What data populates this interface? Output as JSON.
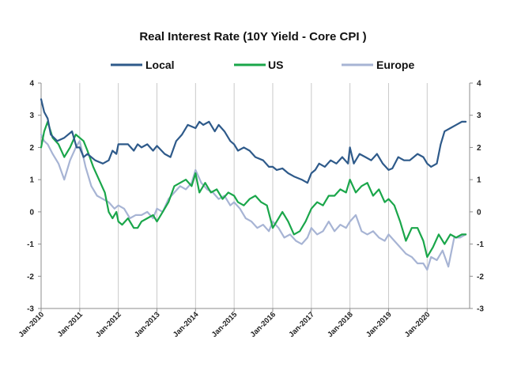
{
  "chart_data": {
    "type": "line",
    "title": "Real Interest Rate (10Y Yield - Core CPI )",
    "xlabel": "",
    "ylabel": "",
    "ylim": [
      -3,
      4
    ],
    "yticks": [
      -3,
      -2,
      -1,
      0,
      1,
      2,
      3,
      4
    ],
    "xlim": [
      2010.0,
      2021.1
    ],
    "x_tick_labels": [
      "Jan-2010",
      "Jan-2011",
      "Jan-2012",
      "Jan-2013",
      "Jan-2014",
      "Jan-2015",
      "Jan-2016",
      "Jan-2017",
      "Jan-2018",
      "Jan-2019",
      "Jan-2020"
    ],
    "x_tick_values": [
      2010,
      2011,
      2012,
      2013,
      2014,
      2015,
      2016,
      2017,
      2018,
      2019,
      2020
    ],
    "grid": {
      "vertical": true,
      "horizontal": false
    },
    "legend_position": "top",
    "series": [
      {
        "name": "Local",
        "color": "#2e5a8a",
        "x": [
          2010.0,
          2010.08,
          2010.17,
          2010.25,
          2010.42,
          2010.6,
          2010.8,
          2010.92,
          2011.0,
          2011.1,
          2011.2,
          2011.4,
          2011.6,
          2011.75,
          2011.85,
          2011.95,
          2012.0,
          2012.1,
          2012.25,
          2012.4,
          2012.5,
          2012.6,
          2012.75,
          2012.9,
          2013.0,
          2013.2,
          2013.35,
          2013.5,
          2013.65,
          2013.8,
          2014.0,
          2014.1,
          2014.2,
          2014.35,
          2014.5,
          2014.6,
          2014.75,
          2014.9,
          2015.0,
          2015.1,
          2015.25,
          2015.4,
          2015.55,
          2015.75,
          2015.9,
          2016.0,
          2016.1,
          2016.25,
          2016.4,
          2016.55,
          2016.75,
          2016.9,
          2017.0,
          2017.1,
          2017.2,
          2017.35,
          2017.5,
          2017.65,
          2017.8,
          2017.95,
          2018.0,
          2018.1,
          2018.25,
          2018.4,
          2018.55,
          2018.7,
          2018.85,
          2019.0,
          2019.1,
          2019.25,
          2019.4,
          2019.55,
          2019.75,
          2019.9,
          2020.0,
          2020.1,
          2020.25,
          2020.35,
          2020.45,
          2020.6,
          2020.75,
          2020.9,
          2021.0
        ],
        "values": [
          3.5,
          3.1,
          2.9,
          2.4,
          2.2,
          2.3,
          2.5,
          2.0,
          2.0,
          1.7,
          1.8,
          1.6,
          1.5,
          1.6,
          1.9,
          1.8,
          2.1,
          2.1,
          2.1,
          1.9,
          2.1,
          2.0,
          2.1,
          1.9,
          2.05,
          1.8,
          1.7,
          2.2,
          2.4,
          2.7,
          2.6,
          2.8,
          2.7,
          2.8,
          2.5,
          2.7,
          2.5,
          2.2,
          2.1,
          1.9,
          2.0,
          1.9,
          1.7,
          1.6,
          1.4,
          1.4,
          1.3,
          1.35,
          1.2,
          1.1,
          1.0,
          0.9,
          1.2,
          1.3,
          1.5,
          1.4,
          1.6,
          1.5,
          1.7,
          1.5,
          2.0,
          1.5,
          1.8,
          1.7,
          1.6,
          1.8,
          1.5,
          1.3,
          1.35,
          1.7,
          1.6,
          1.6,
          1.8,
          1.7,
          1.5,
          1.4,
          1.5,
          2.1,
          2.5,
          2.6,
          2.7,
          2.8,
          2.8
        ]
      },
      {
        "name": "US",
        "color": "#1aa64a",
        "x": [
          2010.0,
          2010.08,
          2010.17,
          2010.3,
          2010.45,
          2010.6,
          2010.75,
          2010.9,
          2011.0,
          2011.1,
          2011.2,
          2011.35,
          2011.5,
          2011.65,
          2011.75,
          2011.85,
          2011.95,
          2012.0,
          2012.1,
          2012.25,
          2012.4,
          2012.5,
          2012.6,
          2012.75,
          2012.9,
          2013.0,
          2013.15,
          2013.3,
          2013.45,
          2013.6,
          2013.75,
          2013.9,
          2014.0,
          2014.1,
          2014.25,
          2014.4,
          2014.55,
          2014.7,
          2014.85,
          2015.0,
          2015.1,
          2015.25,
          2015.4,
          2015.55,
          2015.7,
          2015.85,
          2016.0,
          2016.1,
          2016.25,
          2016.4,
          2016.55,
          2016.7,
          2016.85,
          2017.0,
          2017.15,
          2017.3,
          2017.45,
          2017.6,
          2017.75,
          2017.9,
          2018.0,
          2018.15,
          2018.3,
          2018.45,
          2018.6,
          2018.75,
          2018.9,
          2019.0,
          2019.15,
          2019.3,
          2019.45,
          2019.6,
          2019.75,
          2019.9,
          2020.0,
          2020.15,
          2020.3,
          2020.45,
          2020.6,
          2020.75,
          2020.9,
          2021.0
        ],
        "values": [
          2.0,
          2.5,
          2.8,
          2.3,
          2.1,
          1.7,
          2.0,
          2.4,
          2.3,
          2.2,
          1.9,
          1.4,
          1.0,
          0.6,
          0.0,
          -0.2,
          0.0,
          -0.3,
          -0.4,
          -0.2,
          -0.5,
          -0.5,
          -0.3,
          -0.2,
          -0.1,
          -0.3,
          0.0,
          0.3,
          0.8,
          0.9,
          1.0,
          0.8,
          1.2,
          0.6,
          0.9,
          0.6,
          0.7,
          0.4,
          0.6,
          0.5,
          0.3,
          0.2,
          0.4,
          0.5,
          0.3,
          0.2,
          -0.5,
          -0.3,
          0.0,
          -0.3,
          -0.7,
          -0.6,
          -0.3,
          0.1,
          0.3,
          0.2,
          0.5,
          0.5,
          0.7,
          0.6,
          1.0,
          0.6,
          0.8,
          0.9,
          0.5,
          0.7,
          0.3,
          0.4,
          0.2,
          -0.3,
          -0.9,
          -0.5,
          -0.5,
          -0.9,
          -1.4,
          -1.1,
          -0.7,
          -1.0,
          -0.7,
          -0.8,
          -0.7,
          -0.7
        ]
      },
      {
        "name": "Europe",
        "color": "#a7b4d4",
        "x": [
          2010.0,
          2010.08,
          2010.17,
          2010.3,
          2010.45,
          2010.6,
          2010.75,
          2010.9,
          2011.0,
          2011.15,
          2011.3,
          2011.45,
          2011.6,
          2011.75,
          2011.9,
          2012.0,
          2012.15,
          2012.3,
          2012.45,
          2012.6,
          2012.75,
          2012.9,
          2013.0,
          2013.15,
          2013.3,
          2013.45,
          2013.6,
          2013.75,
          2013.9,
          2014.0,
          2014.15,
          2014.3,
          2014.45,
          2014.6,
          2014.75,
          2014.9,
          2015.0,
          2015.15,
          2015.3,
          2015.45,
          2015.6,
          2015.75,
          2015.9,
          2016.0,
          2016.15,
          2016.3,
          2016.45,
          2016.6,
          2016.75,
          2016.9,
          2017.0,
          2017.15,
          2017.3,
          2017.45,
          2017.6,
          2017.75,
          2017.9,
          2018.0,
          2018.15,
          2018.3,
          2018.45,
          2018.6,
          2018.75,
          2018.9,
          2019.0,
          2019.15,
          2019.3,
          2019.45,
          2019.6,
          2019.75,
          2019.9,
          2020.0,
          2020.1,
          2020.25,
          2020.4,
          2020.55,
          2020.7,
          2020.85,
          2021.0
        ],
        "values": [
          2.4,
          2.2,
          2.1,
          1.8,
          1.5,
          1.0,
          1.6,
          2.0,
          2.2,
          1.4,
          0.8,
          0.5,
          0.4,
          0.3,
          0.1,
          0.2,
          0.1,
          -0.2,
          -0.1,
          -0.1,
          0.0,
          -0.2,
          0.1,
          0.0,
          0.4,
          0.6,
          0.8,
          0.7,
          0.9,
          1.3,
          0.9,
          0.7,
          0.6,
          0.4,
          0.5,
          0.2,
          0.3,
          0.1,
          -0.2,
          -0.3,
          -0.5,
          -0.4,
          -0.6,
          -0.3,
          -0.5,
          -0.8,
          -0.7,
          -0.9,
          -1.0,
          -0.8,
          -0.5,
          -0.7,
          -0.6,
          -0.3,
          -0.6,
          -0.4,
          -0.5,
          -0.3,
          -0.1,
          -0.6,
          -0.7,
          -0.6,
          -0.8,
          -0.9,
          -0.7,
          -0.9,
          -1.1,
          -1.3,
          -1.4,
          -1.6,
          -1.6,
          -1.8,
          -1.4,
          -1.5,
          -1.2,
          -1.7,
          -0.8,
          -0.8,
          -0.7
        ]
      }
    ]
  }
}
